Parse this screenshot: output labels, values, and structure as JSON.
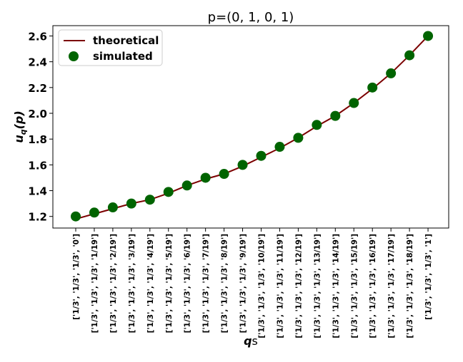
{
  "chart_data": {
    "type": "line",
    "title": "p=(0, 1, 0, 1)",
    "xlabel_bold": "q",
    "xlabel_rest": "s",
    "ylabel": "u_q(p)",
    "categories": [
      "['1/3', '1/3', '1/3', '0']",
      "['1/3', '1/3', '1/3', '1/19']",
      "['1/3', '1/3', '1/3', '2/19']",
      "['1/3', '1/3', '1/3', '3/19']",
      "['1/3', '1/3', '1/3', '4/19']",
      "['1/3', '1/3', '1/3', '5/19']",
      "['1/3', '1/3', '1/3', '6/19']",
      "['1/3', '1/3', '1/3', '7/19']",
      "['1/3', '1/3', '1/3', '8/19']",
      "['1/3', '1/3', '1/3', '9/19']",
      "['1/3', '1/3', '1/3', '10/19']",
      "['1/3', '1/3', '1/3', '11/19']",
      "['1/3', '1/3', '1/3', '12/19']",
      "['1/3', '1/3', '1/3', '13/19']",
      "['1/3', '1/3', '1/3', '14/19']",
      "['1/3', '1/3', '1/3', '15/19']",
      "['1/3', '1/3', '1/3', '16/19']",
      "['1/3', '1/3', '1/3', '17/19']",
      "['1/3', '1/3', '1/3', '18/19']",
      "['1/3', '1/3', '1/3', '1']"
    ],
    "series": [
      {
        "name": "theoretical",
        "kind": "line",
        "color": "#7b0000",
        "values": [
          1.18,
          1.22,
          1.26,
          1.3,
          1.33,
          1.38,
          1.44,
          1.49,
          1.53,
          1.59,
          1.66,
          1.73,
          1.81,
          1.9,
          1.98,
          2.08,
          2.19,
          2.31,
          2.45,
          2.6
        ]
      },
      {
        "name": "simulated",
        "kind": "scatter",
        "color": "#006400",
        "values": [
          1.2,
          1.23,
          1.27,
          1.3,
          1.33,
          1.39,
          1.44,
          1.5,
          1.53,
          1.6,
          1.67,
          1.74,
          1.81,
          1.91,
          1.98,
          2.08,
          2.2,
          2.31,
          2.45,
          2.6
        ]
      }
    ],
    "ylim": [
      1.11,
      2.68
    ],
    "yticks": [
      1.2,
      1.4,
      1.6,
      1.8,
      2.0,
      2.2,
      2.4,
      2.6
    ],
    "yticklabels": [
      "1.2",
      "1.4",
      "1.6",
      "1.8",
      "2.0",
      "2.2",
      "2.4",
      "2.6"
    ],
    "grid": false,
    "legend_position": "top-left"
  }
}
